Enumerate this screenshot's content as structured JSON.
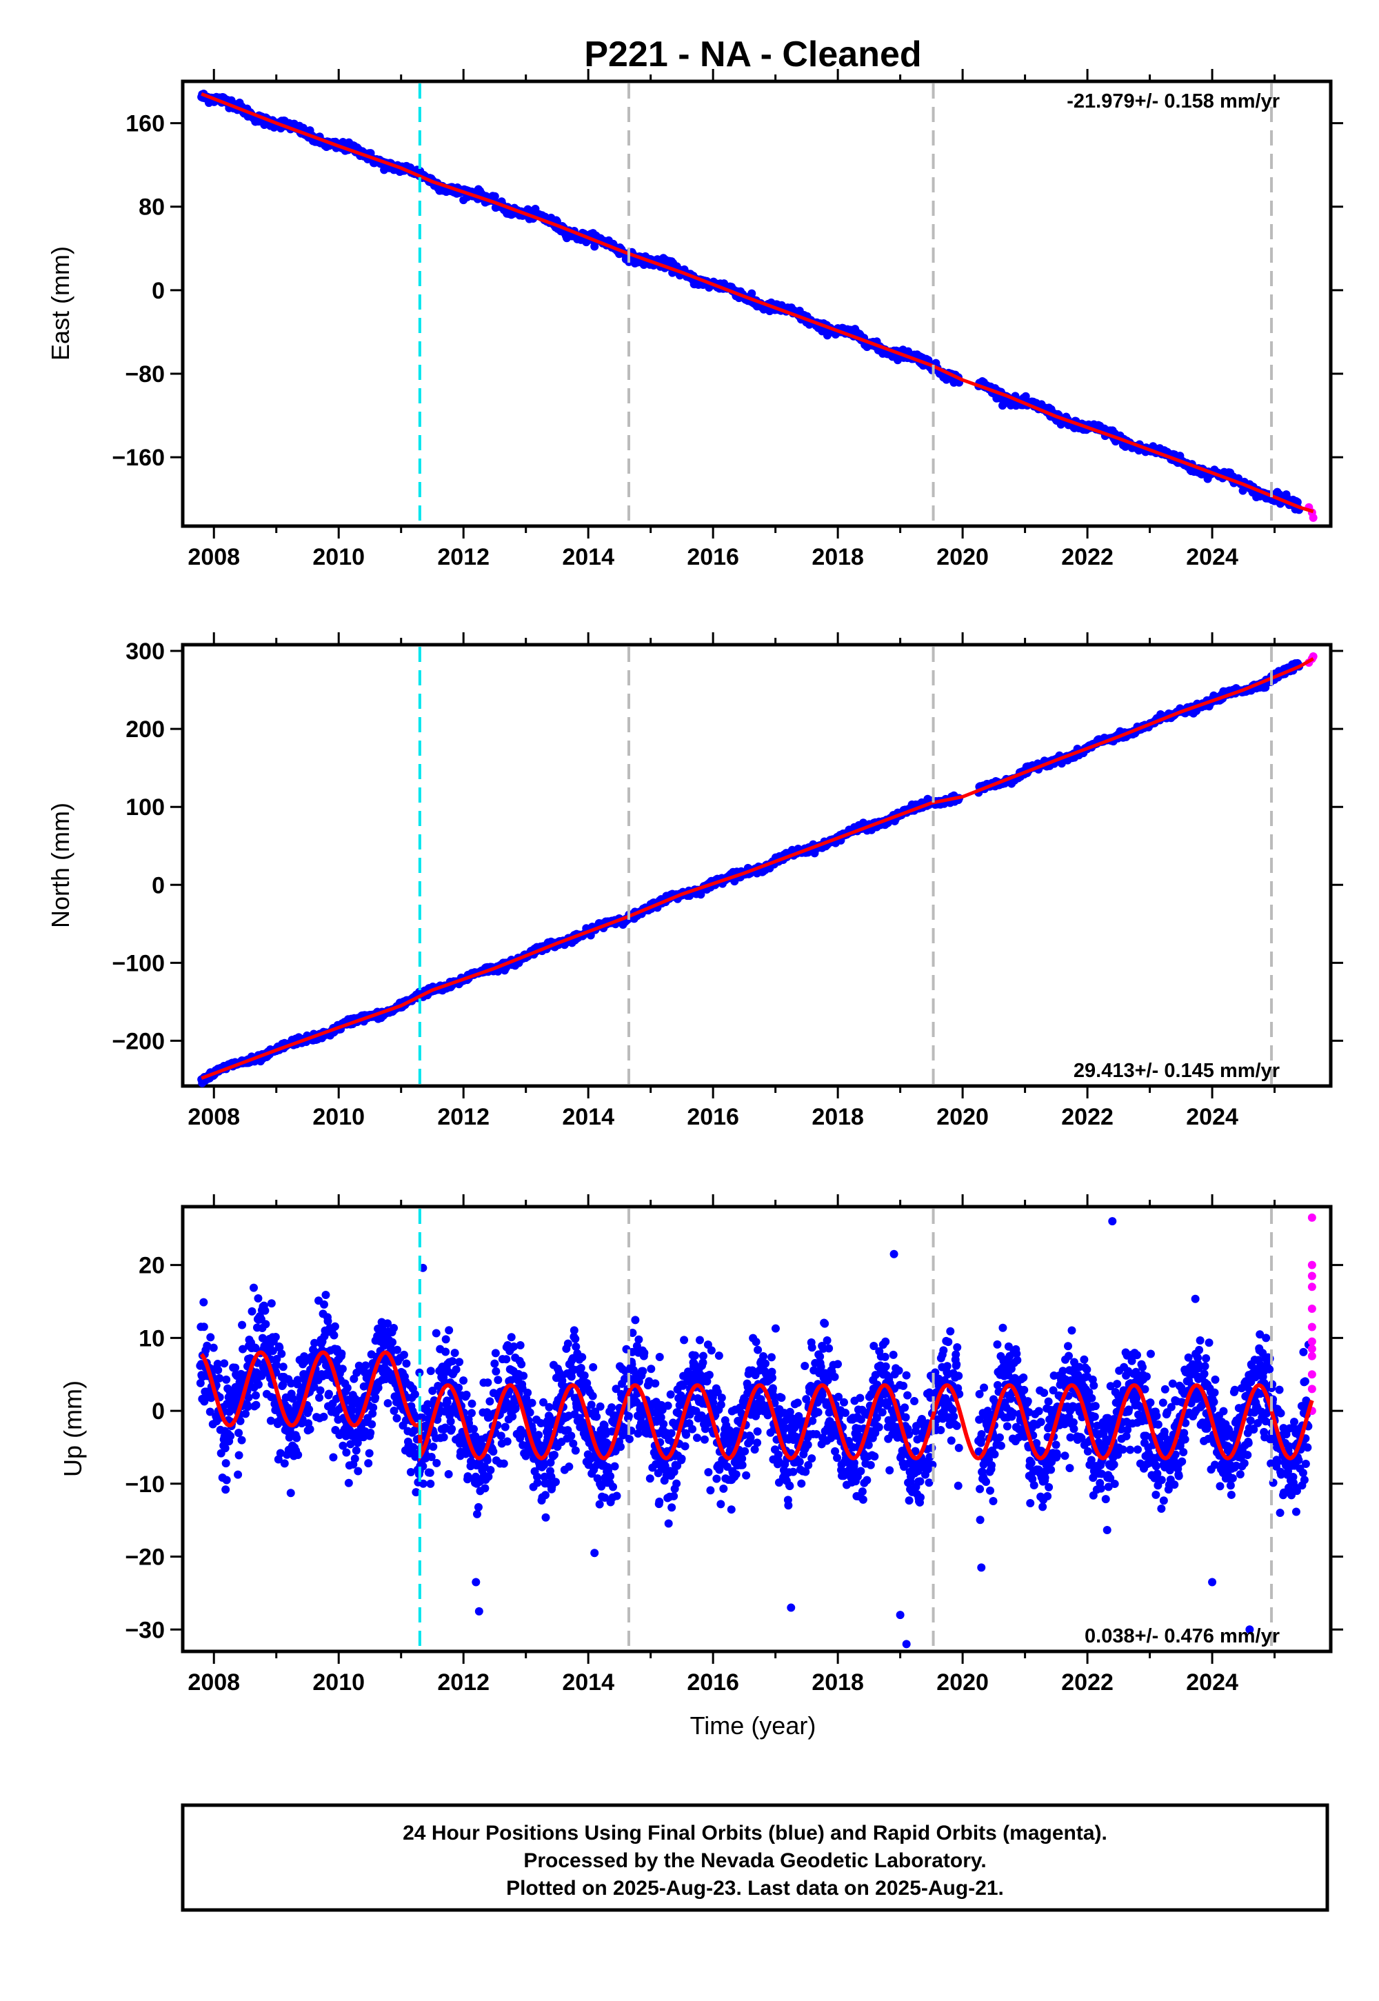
{
  "chart_data": {
    "title": "P221  - NA - Cleaned",
    "xlabel": "Time (year)",
    "xlim": [
      2007.5,
      2025.9
    ],
    "x_ticks": [
      2008,
      2010,
      2012,
      2014,
      2016,
      2018,
      2020,
      2022,
      2024
    ],
    "event_lines": [
      {
        "x": 2011.3,
        "color": "#00e5ee",
        "style": "dashed"
      },
      {
        "x": 2014.65,
        "color": "#bbbbbb",
        "style": "dashed"
      },
      {
        "x": 2019.53,
        "color": "#bbbbbb",
        "style": "dashed"
      },
      {
        "x": 2024.95,
        "color": "#bbbbbb",
        "style": "dashed"
      }
    ],
    "colors": {
      "final": "#0000ff",
      "rapid": "#ff00ff",
      "model": "#ff0000",
      "event_cyan": "#00e5ee",
      "event_gray": "#bbbbbb"
    },
    "panels": [
      {
        "type": "scatter",
        "name": "east",
        "ylabel": "East (mm)",
        "ylim": [
          -226,
          200
        ],
        "y_ticks": [
          160,
          80,
          0,
          -80,
          -160
        ],
        "rate_text": "-21.979+/- 0.158 mm/yr",
        "rate_position": "top-right",
        "series": [
          {
            "name": "Final Orbits",
            "x": [
              2007.8,
              2009,
              2010,
              2011,
              2011.5,
              2012.5,
              2013.5,
              2014.6,
              2015.5,
              2016.5,
              2017.5,
              2018.5,
              2019.5,
              2020,
              2020.7,
              2021.5,
              2022.5,
              2023.5,
              2024.5,
              2025.4
            ],
            "y": [
              188,
              160,
              138,
              117,
              104,
              84,
              62,
              36,
              17,
              -6,
              -28,
              -50,
              -72,
              -86,
              -101,
              -121,
              -142,
              -164,
              -186,
              -208
            ]
          },
          {
            "name": "Rapid Orbits",
            "x": [
              2025.55,
              2025.6,
              2025.62
            ],
            "y": [
              -208,
              -213,
              -218
            ]
          },
          {
            "name": "Model",
            "x": [
              2007.8,
              2025.62
            ],
            "y": [
              188,
              -212
            ]
          }
        ]
      },
      {
        "type": "scatter",
        "name": "north",
        "ylabel": "North (mm)",
        "ylim": [
          -258,
          308
        ],
        "y_ticks": [
          300,
          200,
          100,
          0,
          -100,
          -200
        ],
        "rate_text": "29.413+/- 0.145 mm/yr",
        "rate_position": "bottom-right",
        "series": [
          {
            "name": "Final Orbits",
            "x": [
              2007.8,
              2009,
              2010,
              2011,
              2011.5,
              2012.5,
              2013.5,
              2014.6,
              2015.5,
              2016.5,
              2017.5,
              2018.5,
              2019.5,
              2020,
              2020.7,
              2021.5,
              2022.5,
              2023.5,
              2024.5,
              2025.4
            ],
            "y": [
              -248,
              -212,
              -183,
              -155,
              -135,
              -107,
              -75,
              -42,
              -12,
              15,
              45,
              75,
              105,
              113,
              135,
              160,
              190,
              222,
              250,
              280
            ]
          },
          {
            "name": "Rapid Orbits",
            "x": [
              2025.55,
              2025.6,
              2025.62
            ],
            "y": [
              285,
              290,
              293
            ]
          },
          {
            "name": "Model",
            "x": [
              2007.8,
              2025.62
            ],
            "y": [
              -248,
              290
            ]
          }
        ]
      },
      {
        "type": "scatter",
        "name": "up",
        "ylabel": "Up (mm)",
        "ylim": [
          -33,
          28
        ],
        "y_ticks": [
          20,
          10,
          0,
          -10,
          -20,
          -30
        ],
        "rate_text": "0.038+/- 0.476 mm/yr",
        "rate_position": "bottom-right",
        "series": [
          {
            "name": "Final Orbits",
            "amplitude_pre_2011_3": 5,
            "offset_pre_2011_3": 3,
            "amplitude_post_2011_3": 5,
            "offset_post_2011_3": -1.5,
            "scatter_sd": 3.6
          },
          {
            "name": "Rapid Orbits",
            "x": [
              2025.6,
              2025.6,
              2025.6,
              2025.6,
              2025.6,
              2025.6,
              2025.6,
              2025.6,
              2025.6,
              2025.6,
              2025.6,
              2025.6
            ],
            "y": [
              26.5,
              20,
              18.5,
              17,
              14,
              11.5,
              9.5,
              8.5,
              7.5,
              5,
              3,
              0
            ]
          },
          {
            "name": "Model",
            "seasonal_period_yr": 1.0
          }
        ],
        "outliers": [
          {
            "x": 2011.35,
            "y": 19.6
          },
          {
            "x": 2012.2,
            "y": -23.5
          },
          {
            "x": 2012.25,
            "y": -27.5
          },
          {
            "x": 2014.1,
            "y": -19.5
          },
          {
            "x": 2017.25,
            "y": -27
          },
          {
            "x": 2018.9,
            "y": 21.5
          },
          {
            "x": 2019.0,
            "y": -28
          },
          {
            "x": 2019.1,
            "y": -32
          },
          {
            "x": 2020.3,
            "y": -21.5
          },
          {
            "x": 2022.4,
            "y": 26
          },
          {
            "x": 2024.0,
            "y": -23.5
          },
          {
            "x": 2024.6,
            "y": -30
          }
        ]
      }
    ],
    "footer": [
      "24 Hour Positions Using Final Orbits (blue) and Rapid Orbits (magenta).",
      "Processed by the Nevada Geodetic Laboratory.",
      "Plotted on 2025-Aug-23. Last data on 2025-Aug-21."
    ]
  }
}
